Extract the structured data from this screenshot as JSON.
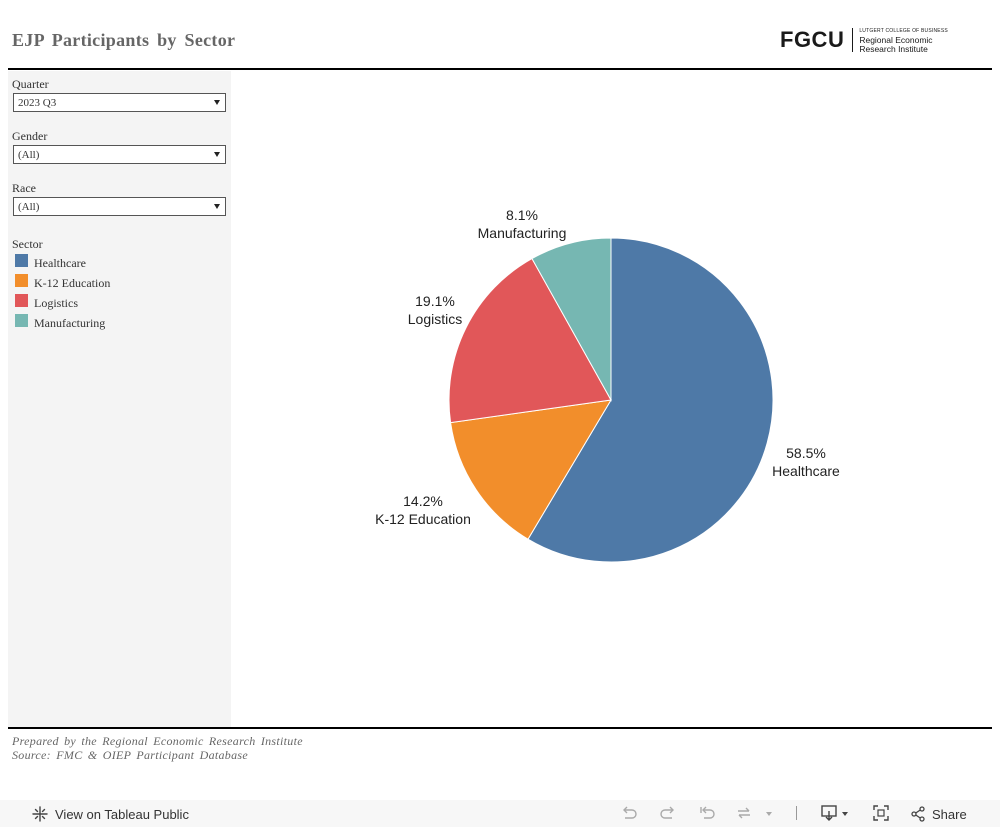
{
  "header": {
    "title": "EJP Participants by Sector",
    "logo": {
      "mark": "FGCU",
      "small_line": "LUTGERT COLLEGE OF BUSINESS",
      "line1": "Regional Economic",
      "line2": "Research Institute"
    }
  },
  "filters": {
    "quarter": {
      "label": "Quarter",
      "value": "2023 Q3"
    },
    "gender": {
      "label": "Gender",
      "value": "(All)"
    },
    "race": {
      "label": "Race",
      "value": "(All)"
    }
  },
  "legend": {
    "title": "Sector",
    "items": [
      {
        "label": "Healthcare",
        "color": "#4e79a7"
      },
      {
        "label": "K-12 Education",
        "color": "#f28e2b"
      },
      {
        "label": "Logistics",
        "color": "#e15759"
      },
      {
        "label": "Manufacturing",
        "color": "#76b7b2"
      }
    ]
  },
  "chart_data": {
    "type": "pie",
    "categories": [
      "Healthcare",
      "K-12 Education",
      "Logistics",
      "Manufacturing"
    ],
    "values": [
      58.5,
      14.2,
      19.1,
      8.1
    ],
    "labels": [
      "58.5%",
      "14.2%",
      "19.1%",
      "8.1%"
    ],
    "colors": [
      "#4e79a7",
      "#f28e2b",
      "#e15759",
      "#76b7b2"
    ]
  },
  "footer": {
    "line1": "Prepared by the Regional Economic Research Institute",
    "line2": "Source: FMC & OIEP Participant Database"
  },
  "toolbar": {
    "view_label": "View on Tableau Public",
    "share_label": "Share"
  }
}
